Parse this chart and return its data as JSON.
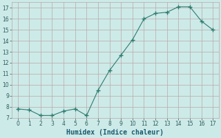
{
  "x": [
    0,
    1,
    2,
    3,
    4,
    5,
    6,
    7,
    8,
    9,
    10,
    11,
    12,
    13,
    14,
    15,
    16,
    17
  ],
  "y": [
    7.8,
    7.7,
    7.2,
    7.2,
    7.6,
    7.8,
    7.2,
    9.5,
    11.3,
    12.7,
    14.1,
    16.0,
    16.5,
    16.6,
    17.1,
    17.1,
    15.8,
    15.0
  ],
  "line_color": "#2d7a6e",
  "marker_color": "#2d7a6e",
  "bg_color": "#cceae8",
  "grid_color": "#b8a8a8",
  "xlabel": "Humidex (Indice chaleur)",
  "xlabel_fontsize": 7,
  "xlabel_color": "#1a5a6e",
  "tick_label_color": "#2d5a5a",
  "ylim": [
    7,
    17.5
  ],
  "xlim": [
    -0.5,
    17.5
  ],
  "yticks": [
    7,
    8,
    9,
    10,
    11,
    12,
    13,
    14,
    15,
    16,
    17
  ],
  "xticks": [
    0,
    1,
    2,
    3,
    4,
    5,
    6,
    7,
    8,
    9,
    10,
    11,
    12,
    13,
    14,
    15,
    16,
    17
  ]
}
